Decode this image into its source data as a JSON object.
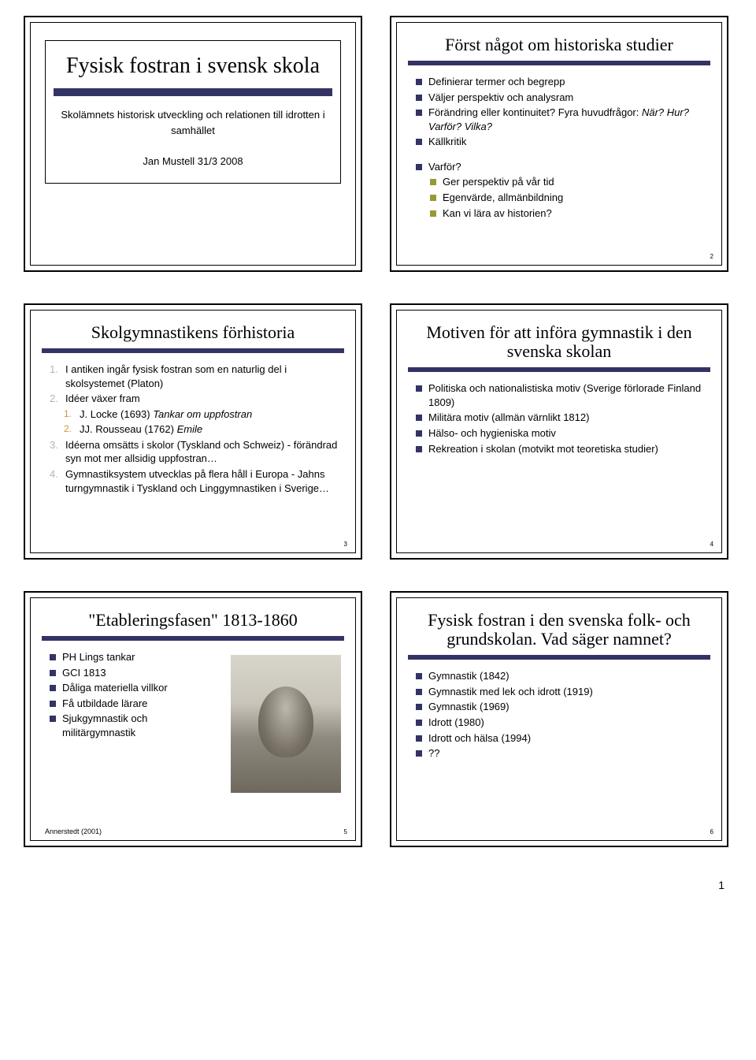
{
  "colors": {
    "accent_bar": "#333366",
    "bullet_navy": "#333366",
    "bullet_olive": "#999933",
    "bullet_teal": "#669999",
    "num_gray": "#b3b3b3",
    "num_orange": "#cc9933"
  },
  "page_number": "1",
  "slides": [
    {
      "type": "title",
      "title": "Fysisk fostran i svensk skola",
      "subtitle_lines": [
        "Skolämnets historisk utveckling och relationen till idrotten i samhället",
        "",
        "Jan Mustell 31/3 2008"
      ]
    },
    {
      "type": "content",
      "title": "Först något om historiska studier",
      "slide_number": "2",
      "items": [
        {
          "kind": "sq",
          "color": "#333366",
          "text": "Definierar termer och begrepp"
        },
        {
          "kind": "sq",
          "color": "#333366",
          "text": "Väljer perspektiv och analysram"
        },
        {
          "kind": "sq",
          "color": "#333366",
          "text": "Förändring eller kontinuitet? Fyra huvudfrågor: ",
          "tail_italic": "När? Hur? Varför? Vilka?"
        },
        {
          "kind": "sq",
          "color": "#333366",
          "text": "Källkritik"
        },
        {
          "kind": "spacer"
        },
        {
          "kind": "sq",
          "color": "#333366",
          "text": "Varför?"
        },
        {
          "kind": "sq",
          "color": "#999933",
          "text": "Ger perspektiv på vår tid",
          "sub": true
        },
        {
          "kind": "sq",
          "color": "#999933",
          "text": "Egenvärde, allmänbildning",
          "sub": true
        },
        {
          "kind": "sq",
          "color": "#999933",
          "text": "Kan vi lära av historien?",
          "sub": true
        }
      ]
    },
    {
      "type": "content",
      "title": "Skolgymnastikens förhistoria",
      "slide_number": "3",
      "items": [
        {
          "kind": "num",
          "num": "1.",
          "text": "I antiken ingår fysisk fostran som en naturlig del i skolsystemet (Platon)"
        },
        {
          "kind": "num",
          "num": "2.",
          "text": "Idéer växer fram"
        },
        {
          "kind": "subnum",
          "num": "1.",
          "text": "J. Locke (1693) ",
          "tail_italic": "Tankar om uppfostran"
        },
        {
          "kind": "subnum",
          "num": "2.",
          "text": "JJ. Rousseau (1762) ",
          "tail_italic": "Emile"
        },
        {
          "kind": "num",
          "num": "3.",
          "text": "Idéerna omsätts i skolor (Tyskland och Schweiz) - förändrad syn mot mer allsidig uppfostran…"
        },
        {
          "kind": "num",
          "num": "4.",
          "text": "Gymnastiksystem utvecklas på flera håll i Europa - Jahns turngymnastik i Tyskland och Linggymnastiken i Sverige…"
        }
      ]
    },
    {
      "type": "content",
      "title": "Motiven för att införa gymnastik i den svenska skolan",
      "slide_number": "4",
      "items": [
        {
          "kind": "sq",
          "color": "#333366",
          "text": "Politiska och nationalistiska motiv (Sverige förlorade Finland 1809)"
        },
        {
          "kind": "sq",
          "color": "#333366",
          "text": "Militära motiv (allmän värnlikt 1812)"
        },
        {
          "kind": "sq",
          "color": "#333366",
          "text": "Hälso- och hygieniska motiv"
        },
        {
          "kind": "sq",
          "color": "#333366",
          "text": "Rekreation i skolan (motvikt mot teoretiska studier)"
        }
      ]
    },
    {
      "type": "content",
      "title": "\"Etableringsfasen\" 1813-1860",
      "slide_number": "5",
      "footnote": "Annerstedt (2001)",
      "has_portrait": true,
      "items": [
        {
          "kind": "sq",
          "color": "#333366",
          "text": "PH Lings tankar"
        },
        {
          "kind": "sq",
          "color": "#333366",
          "text": "GCI 1813"
        },
        {
          "kind": "sq",
          "color": "#333366",
          "text": "Dåliga materiella villkor"
        },
        {
          "kind": "sq",
          "color": "#333366",
          "text": "Få utbildade lärare"
        },
        {
          "kind": "sq",
          "color": "#333366",
          "text": "Sjukgymnastik och militärgymnastik"
        }
      ]
    },
    {
      "type": "content",
      "title": "Fysisk fostran i den svenska folk- och grundskolan. Vad säger namnet?",
      "slide_number": "6",
      "items": [
        {
          "kind": "sq",
          "color": "#333366",
          "text": "Gymnastik (1842)"
        },
        {
          "kind": "sq",
          "color": "#333366",
          "text": "Gymnastik med lek och idrott (1919)"
        },
        {
          "kind": "sq",
          "color": "#333366",
          "text": "Gymnastik (1969)"
        },
        {
          "kind": "sq",
          "color": "#333366",
          "text": "Idrott (1980)"
        },
        {
          "kind": "sq",
          "color": "#333366",
          "text": "Idrott och hälsa (1994)"
        },
        {
          "kind": "sq",
          "color": "#333366",
          "text": "??"
        }
      ]
    }
  ]
}
